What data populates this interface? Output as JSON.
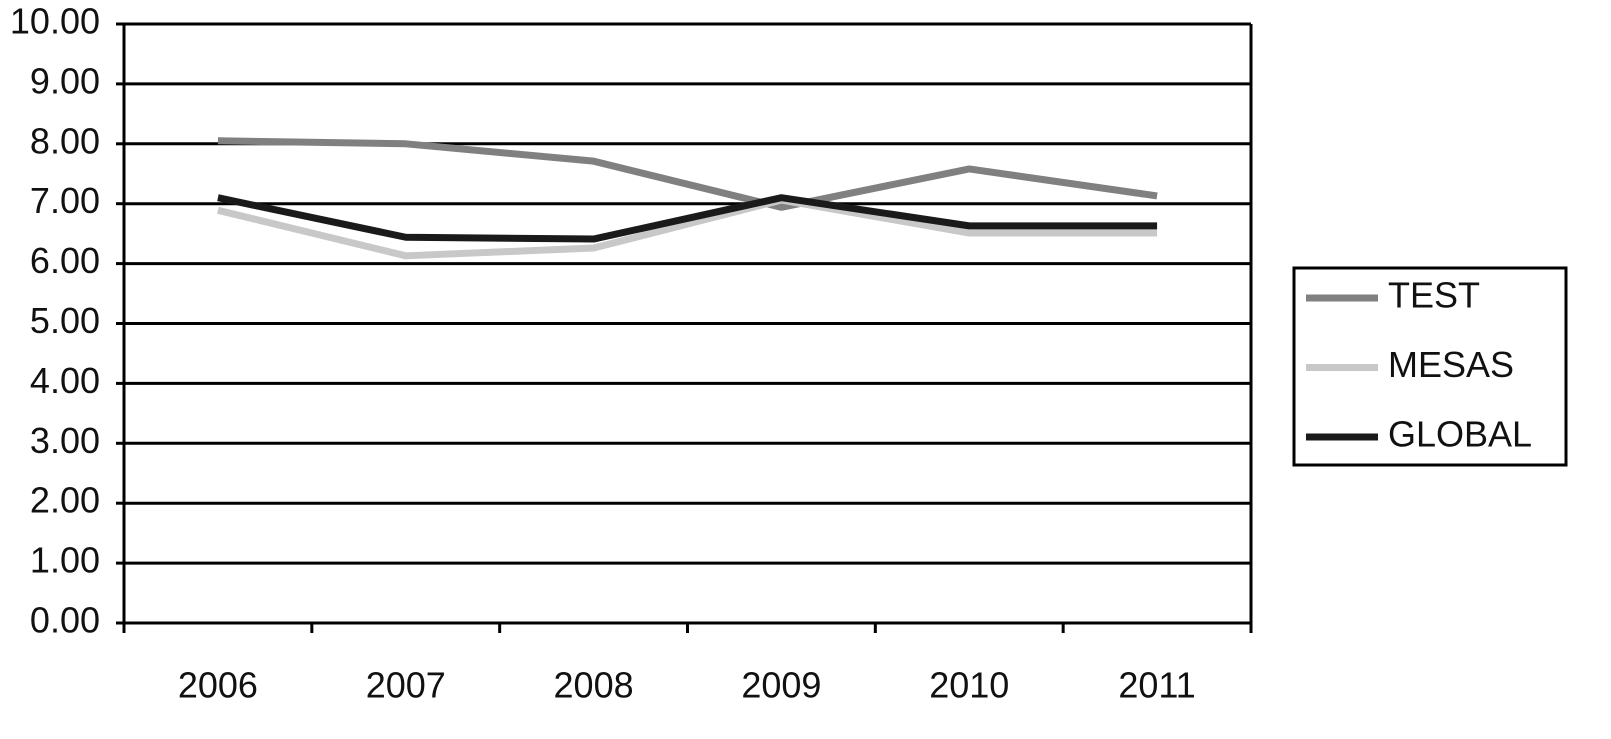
{
  "chart_data": {
    "type": "line",
    "categories": [
      "2006",
      "2007",
      "2008",
      "2009",
      "2010",
      "2011"
    ],
    "series": [
      {
        "name": "TEST",
        "color": "#808080",
        "values": [
          8.05,
          8.0,
          7.71,
          6.94,
          7.58,
          7.13
        ]
      },
      {
        "name": "MESAS",
        "color": "#c8c8c8",
        "values": [
          6.89,
          6.13,
          6.26,
          7.06,
          6.51,
          6.51
        ]
      },
      {
        "name": "GLOBAL",
        "color": "#1a1a1a",
        "values": [
          7.1,
          6.44,
          6.41,
          7.1,
          6.63,
          6.63
        ]
      }
    ],
    "ylim": [
      0,
      10
    ],
    "yticks": [
      {
        "value": 0,
        "label": "0.00"
      },
      {
        "value": 1,
        "label": "1.00"
      },
      {
        "value": 2,
        "label": "2.00"
      },
      {
        "value": 3,
        "label": "3.00"
      },
      {
        "value": 4,
        "label": "4.00"
      },
      {
        "value": 5,
        "label": "5.00"
      },
      {
        "value": 6,
        "label": "6.00"
      },
      {
        "value": 7,
        "label": "7.00"
      },
      {
        "value": 8,
        "label": "8.00"
      },
      {
        "value": 9,
        "label": "9.00"
      },
      {
        "value": 10,
        "label": "10.00"
      }
    ],
    "grid": true,
    "legend": "right"
  }
}
